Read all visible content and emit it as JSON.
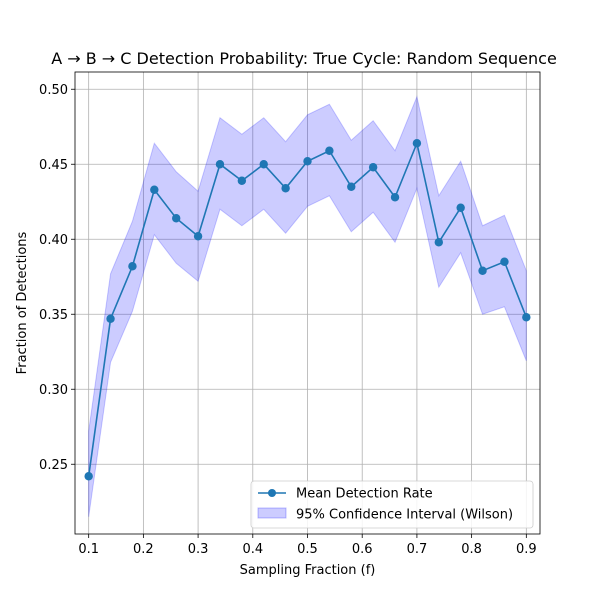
{
  "chart_data": {
    "type": "line",
    "title": "A → B → C Detection Probability: True Cycle: Random Sequence",
    "xlabel": "Sampling Fraction (f)",
    "ylabel": "Fraction of Detections",
    "xlim": [
      0.075,
      0.925
    ],
    "ylim": [
      0.2035,
      0.5115
    ],
    "xticks": [
      0.1,
      0.2,
      0.3,
      0.4,
      0.5,
      0.6,
      0.7,
      0.8,
      0.9
    ],
    "xtick_labels": [
      "0.1",
      "0.2",
      "0.3",
      "0.4",
      "0.5",
      "0.6",
      "0.7",
      "0.8",
      "0.9"
    ],
    "yticks": [
      0.25,
      0.3,
      0.35,
      0.4,
      0.45,
      0.5
    ],
    "ytick_labels": [
      "0.25",
      "0.30",
      "0.35",
      "0.40",
      "0.45",
      "0.50"
    ],
    "grid": true,
    "legend_position": "lower-right",
    "x": [
      0.1,
      0.14,
      0.18,
      0.22,
      0.26,
      0.3,
      0.34,
      0.38,
      0.42,
      0.46,
      0.5,
      0.54,
      0.58,
      0.62,
      0.66,
      0.7,
      0.74,
      0.78,
      0.82,
      0.86,
      0.9
    ],
    "series": [
      {
        "name": "Mean Detection Rate",
        "color": "#1f77b4",
        "values": [
          0.242,
          0.347,
          0.382,
          0.433,
          0.414,
          0.402,
          0.45,
          0.439,
          0.45,
          0.434,
          0.452,
          0.459,
          0.435,
          0.448,
          0.428,
          0.464,
          0.398,
          0.421,
          0.379,
          0.385,
          0.348
        ]
      }
    ],
    "band": {
      "name": "95% Confidence Interval (Wilson)",
      "color": "#0000ff",
      "lower": [
        0.215,
        0.318,
        0.352,
        0.403,
        0.384,
        0.372,
        0.42,
        0.409,
        0.42,
        0.404,
        0.422,
        0.429,
        0.405,
        0.418,
        0.398,
        0.434,
        0.368,
        0.391,
        0.35,
        0.355,
        0.319
      ],
      "upper": [
        0.272,
        0.377,
        0.412,
        0.464,
        0.445,
        0.432,
        0.481,
        0.47,
        0.481,
        0.465,
        0.483,
        0.49,
        0.466,
        0.479,
        0.459,
        0.495,
        0.429,
        0.452,
        0.409,
        0.416,
        0.379
      ]
    }
  }
}
